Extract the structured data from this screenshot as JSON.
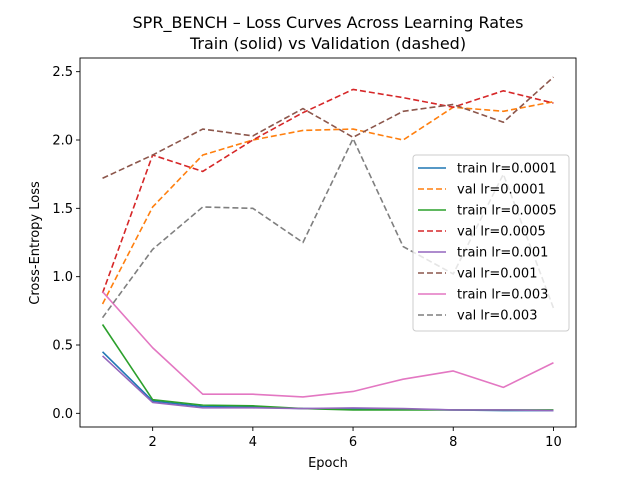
{
  "chart_data": {
    "type": "line",
    "title": "SPR_BENCH – Loss Curves Across Learning Rates",
    "subtitle": "Train (solid) vs Validation (dashed)",
    "xlabel": "Epoch",
    "ylabel": "Cross-Entropy Loss",
    "xlim": [
      0.55,
      10.45
    ],
    "ylim": [
      -0.1,
      2.6
    ],
    "x_ticks": [
      2,
      4,
      6,
      8,
      10
    ],
    "y_ticks": [
      0.0,
      0.5,
      1.0,
      1.5,
      2.0,
      2.5
    ],
    "y_tick_labels": [
      "0.0",
      "0.5",
      "1.0",
      "1.5",
      "2.0",
      "2.5"
    ],
    "x": [
      1,
      2,
      3,
      4,
      5,
      6,
      7,
      8,
      9,
      10
    ],
    "grid": false,
    "legend_position": "center-right",
    "series": [
      {
        "name": "train lr=0.0001",
        "style": "solid",
        "color": "#1f77b4",
        "values": [
          0.45,
          0.09,
          0.05,
          0.045,
          0.035,
          0.03,
          0.03,
          0.025,
          0.02,
          0.02
        ]
      },
      {
        "name": "val lr=0.0001",
        "style": "dashed",
        "color": "#ff7f0e",
        "values": [
          0.8,
          1.51,
          1.89,
          2.0,
          2.07,
          2.08,
          2.0,
          2.24,
          2.21,
          2.28
        ]
      },
      {
        "name": "train lr=0.0005",
        "style": "solid",
        "color": "#2ca02c",
        "values": [
          0.65,
          0.1,
          0.06,
          0.055,
          0.035,
          0.025,
          0.025,
          0.025,
          0.025,
          0.025
        ]
      },
      {
        "name": "val lr=0.0005",
        "style": "dashed",
        "color": "#d62728",
        "values": [
          0.88,
          1.89,
          1.77,
          2.0,
          2.2,
          2.37,
          2.31,
          2.24,
          2.36,
          2.27
        ]
      },
      {
        "name": "train lr=0.001",
        "style": "solid",
        "color": "#9467bd",
        "values": [
          0.42,
          0.08,
          0.04,
          0.04,
          0.035,
          0.04,
          0.035,
          0.025,
          0.025,
          0.02
        ]
      },
      {
        "name": "val lr=0.001",
        "style": "dashed",
        "color": "#8c564b",
        "values": [
          1.72,
          1.89,
          2.08,
          2.03,
          2.23,
          2.02,
          2.21,
          2.26,
          2.13,
          2.46
        ]
      },
      {
        "name": "train lr=0.003",
        "style": "solid",
        "color": "#e377c2",
        "values": [
          0.89,
          0.48,
          0.14,
          0.14,
          0.12,
          0.16,
          0.25,
          0.31,
          0.19,
          0.37
        ]
      },
      {
        "name": "val lr=0.003",
        "style": "dashed",
        "color": "#7f7f7f",
        "values": [
          0.7,
          1.2,
          1.51,
          1.5,
          1.25,
          2.01,
          1.22,
          1.02,
          1.75,
          0.77
        ]
      }
    ]
  }
}
